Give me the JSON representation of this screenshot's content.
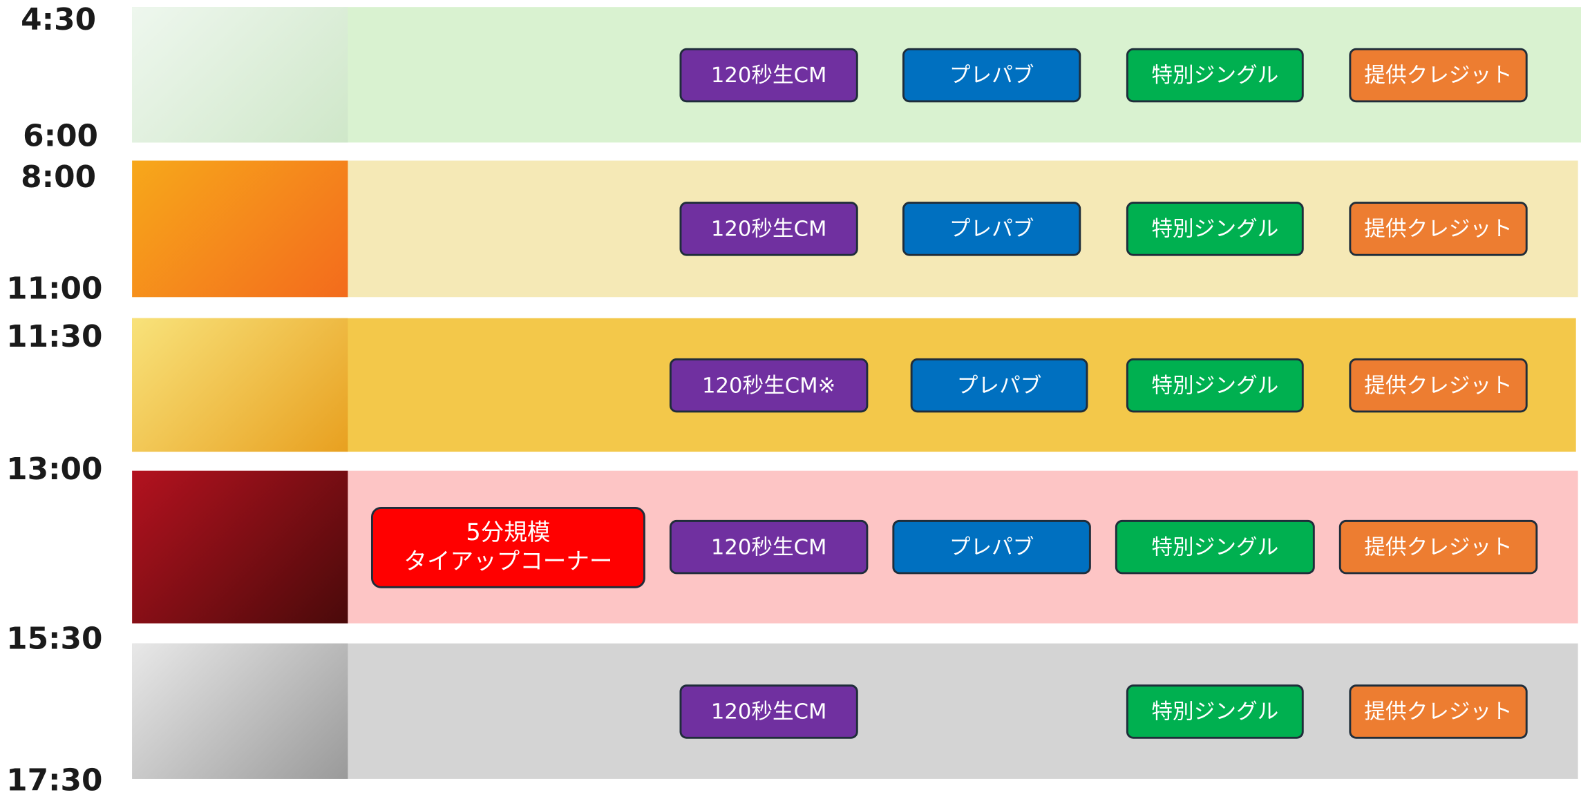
{
  "time_labels": [
    "4:30",
    "6:00",
    "8:00",
    "11:00",
    "11:30",
    "13:00",
    "15:30",
    "17:30"
  ],
  "rows": [
    {
      "buttons": [
        {
          "lines": [
            "120秒生CM"
          ]
        },
        {
          "lines": [
            "プレパブ"
          ]
        },
        {
          "lines": [
            "特別ジングル"
          ]
        },
        {
          "lines": [
            "提供クレジット"
          ]
        }
      ]
    },
    {
      "buttons": [
        {
          "lines": [
            "120秒生CM"
          ]
        },
        {
          "lines": [
            "プレパブ"
          ]
        },
        {
          "lines": [
            "特別ジングル"
          ]
        },
        {
          "lines": [
            "提供クレジット"
          ]
        }
      ]
    },
    {
      "buttons": [
        {
          "lines": [
            "120秒生CM※"
          ]
        },
        {
          "lines": [
            "プレパブ"
          ]
        },
        {
          "lines": [
            "特別ジングル"
          ]
        },
        {
          "lines": [
            "提供クレジット"
          ]
        }
      ]
    },
    {
      "buttons": [
        {
          "lines": [
            "5分規模",
            "タイアップコーナー"
          ]
        },
        {
          "lines": [
            "120秒生CM"
          ]
        },
        {
          "lines": [
            "プレパブ"
          ]
        },
        {
          "lines": [
            "特別ジングル"
          ]
        },
        {
          "lines": [
            "提供クレジット"
          ]
        }
      ]
    },
    {
      "buttons": [
        {
          "lines": [
            "120秒生CM"
          ]
        },
        {
          "lines": [
            "特別ジングル"
          ]
        },
        {
          "lines": [
            "提供クレジット"
          ]
        }
      ]
    }
  ]
}
